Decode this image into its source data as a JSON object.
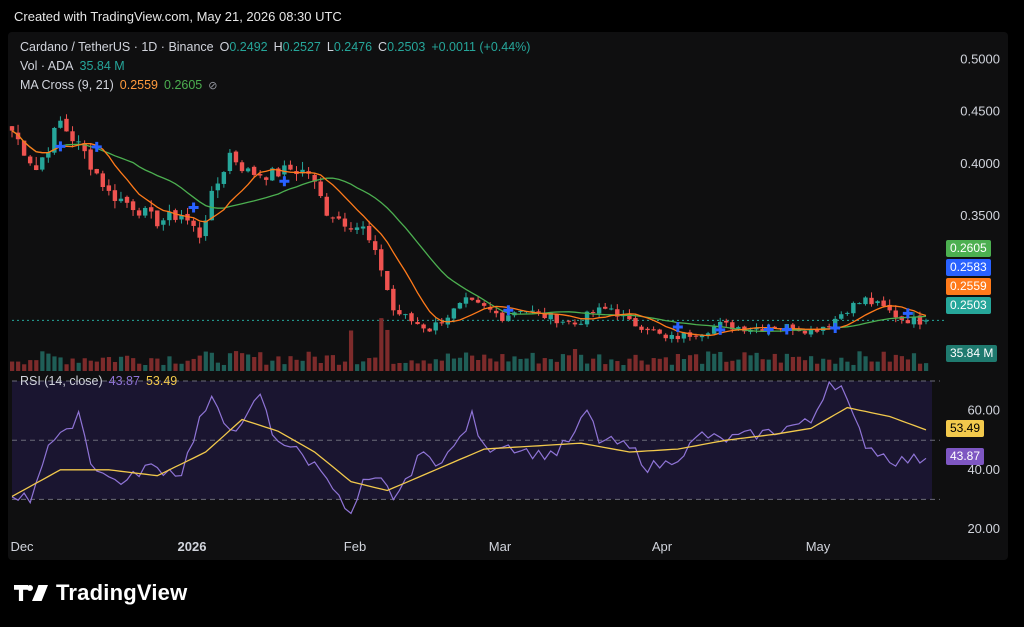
{
  "header": {
    "text": "Created with TradingView.com, May 21, 2026 08:30 UTC"
  },
  "legend": {
    "pair": "Cardano / TetherUS · 1D · Binance",
    "o_label": "O",
    "o_value": "0.2492",
    "h_label": "H",
    "h_value": "0.2527",
    "l_label": "L",
    "l_value": "0.2476",
    "c_label": "C",
    "c_value": "0.2503",
    "change": "+0.0011 (+0.44%)",
    "vol_label": "Vol · ADA",
    "vol_value": "35.84 M",
    "ma_label": "MA Cross (9, 21)",
    "ma_fast": "0.2559",
    "ma_slow": "0.2605",
    "ma_icon": "eye-off-icon",
    "rsi_label": "RSI (14, close)",
    "rsi_value": "43.87",
    "rsi_ma_value": "53.49"
  },
  "price_badges": [
    {
      "value": "0.2605",
      "color": "#4caf50"
    },
    {
      "value": "0.2583",
      "color": "#2962ff"
    },
    {
      "value": "0.2559",
      "color": "#ff7a1a"
    },
    {
      "value": "0.2503",
      "color": "#26a69a"
    },
    {
      "value": "35.84 M",
      "color": "#1f7a6f"
    }
  ],
  "rsi_badges": [
    {
      "value": "53.49",
      "color": "#f2c94c",
      "text_color": "#000"
    },
    {
      "value": "43.87",
      "color": "#7e57c2",
      "text_color": "#fff"
    }
  ],
  "colors": {
    "up": "#26a69a",
    "down": "#ef5350",
    "ma_fast": "#ff7a1a",
    "ma_slow": "#4caf50",
    "rsi": "#8f74d6",
    "rsi_ma": "#f2c94c",
    "cross": "#2962ff"
  },
  "brand": {
    "name": "TradingView",
    "icon": "tradingview-logo-icon"
  },
  "chart_data": {
    "type": "candlestick",
    "title": "Cardano / TetherUS · 1D · Binance",
    "price_axis": {
      "ticks": [
        "0.5000",
        "0.4500",
        "0.4000",
        "0.3500"
      ],
      "ylim": [
        0.222,
        0.51
      ]
    },
    "x_ticks": [
      "Dec",
      "2026",
      "Feb",
      "Mar",
      "Apr",
      "May"
    ],
    "close_anchors": [
      [
        0,
        0.432
      ],
      [
        4,
        0.395
      ],
      [
        8,
        0.44
      ],
      [
        12,
        0.41
      ],
      [
        16,
        0.372
      ],
      [
        20,
        0.36
      ],
      [
        24,
        0.345
      ],
      [
        28,
        0.352
      ],
      [
        31,
        0.332
      ],
      [
        33,
        0.368
      ],
      [
        36,
        0.41
      ],
      [
        39,
        0.392
      ],
      [
        43,
        0.39
      ],
      [
        46,
        0.395
      ],
      [
        49,
        0.392
      ],
      [
        52,
        0.355
      ],
      [
        55,
        0.345
      ],
      [
        58,
        0.338
      ],
      [
        61,
        0.3
      ],
      [
        63,
        0.26
      ],
      [
        66,
        0.25
      ],
      [
        69,
        0.242
      ],
      [
        72,
        0.255
      ],
      [
        75,
        0.268
      ],
      [
        78,
        0.262
      ],
      [
        81,
        0.254
      ],
      [
        84,
        0.262
      ],
      [
        87,
        0.256
      ],
      [
        90,
        0.252
      ],
      [
        93,
        0.247
      ],
      [
        96,
        0.258
      ],
      [
        99,
        0.262
      ],
      [
        102,
        0.248
      ],
      [
        105,
        0.244
      ],
      [
        108,
        0.232
      ],
      [
        111,
        0.236
      ],
      [
        114,
        0.24
      ],
      [
        117,
        0.246
      ],
      [
        120,
        0.244
      ],
      [
        123,
        0.243
      ],
      [
        126,
        0.245
      ],
      [
        129,
        0.244
      ],
      [
        132,
        0.241
      ],
      [
        135,
        0.247
      ],
      [
        138,
        0.262
      ],
      [
        141,
        0.27
      ],
      [
        144,
        0.262
      ],
      [
        147,
        0.252
      ],
      [
        150,
        0.25
      ],
      [
        151,
        0.2503
      ]
    ],
    "rsi": {
      "ticks": [
        "60.00",
        "40.00",
        "20.00"
      ],
      "levels": [
        70,
        50,
        30
      ],
      "ylim": [
        20,
        70
      ],
      "rsi_anchors": [
        [
          0,
          32
        ],
        [
          3,
          30
        ],
        [
          6,
          49
        ],
        [
          9,
          52
        ],
        [
          11,
          60
        ],
        [
          13,
          43
        ],
        [
          16,
          37
        ],
        [
          19,
          36
        ],
        [
          22,
          41
        ],
        [
          25,
          40
        ],
        [
          28,
          39
        ],
        [
          31,
          57
        ],
        [
          33,
          63
        ],
        [
          35,
          56
        ],
        [
          38,
          54
        ],
        [
          41,
          66
        ],
        [
          43,
          52
        ],
        [
          46,
          48
        ],
        [
          49,
          43
        ],
        [
          52,
          39
        ],
        [
          54,
          30
        ],
        [
          56,
          24
        ],
        [
          58,
          35
        ],
        [
          61,
          36
        ],
        [
          63,
          31
        ],
        [
          65,
          35
        ],
        [
          67,
          45
        ],
        [
          70,
          43
        ],
        [
          73,
          47
        ],
        [
          76,
          58
        ],
        [
          78,
          47
        ],
        [
          81,
          49
        ],
        [
          84,
          47
        ],
        [
          87,
          45
        ],
        [
          90,
          46
        ],
        [
          93,
          52
        ],
        [
          95,
          60
        ],
        [
          97,
          50
        ],
        [
          100,
          49
        ],
        [
          103,
          46
        ],
        [
          105,
          41
        ],
        [
          108,
          42
        ],
        [
          111,
          46
        ],
        [
          114,
          52
        ],
        [
          117,
          50
        ],
        [
          120,
          51
        ],
        [
          123,
          52
        ],
        [
          126,
          53
        ],
        [
          129,
          55
        ],
        [
          132,
          56
        ],
        [
          135,
          70
        ],
        [
          137,
          68
        ],
        [
          139,
          57
        ],
        [
          141,
          49
        ],
        [
          143,
          46
        ],
        [
          146,
          43
        ],
        [
          151,
          43.87
        ]
      ],
      "ma_anchors": [
        [
          0,
          31
        ],
        [
          8,
          40
        ],
        [
          16,
          40
        ],
        [
          24,
          38
        ],
        [
          32,
          46
        ],
        [
          38,
          57
        ],
        [
          44,
          53
        ],
        [
          50,
          46
        ],
        [
          56,
          36
        ],
        [
          62,
          33
        ],
        [
          70,
          40
        ],
        [
          78,
          47
        ],
        [
          86,
          48
        ],
        [
          94,
          49
        ],
        [
          102,
          46
        ],
        [
          110,
          47
        ],
        [
          118,
          50
        ],
        [
          126,
          52
        ],
        [
          132,
          54
        ],
        [
          138,
          61
        ],
        [
          145,
          58
        ],
        [
          151,
          53.49
        ]
      ]
    },
    "volume": {
      "last": "35.84 M"
    },
    "ma_cross_markers_at_bars": [
      8,
      14,
      30,
      45,
      82,
      110,
      117,
      125,
      128,
      136,
      148
    ]
  }
}
